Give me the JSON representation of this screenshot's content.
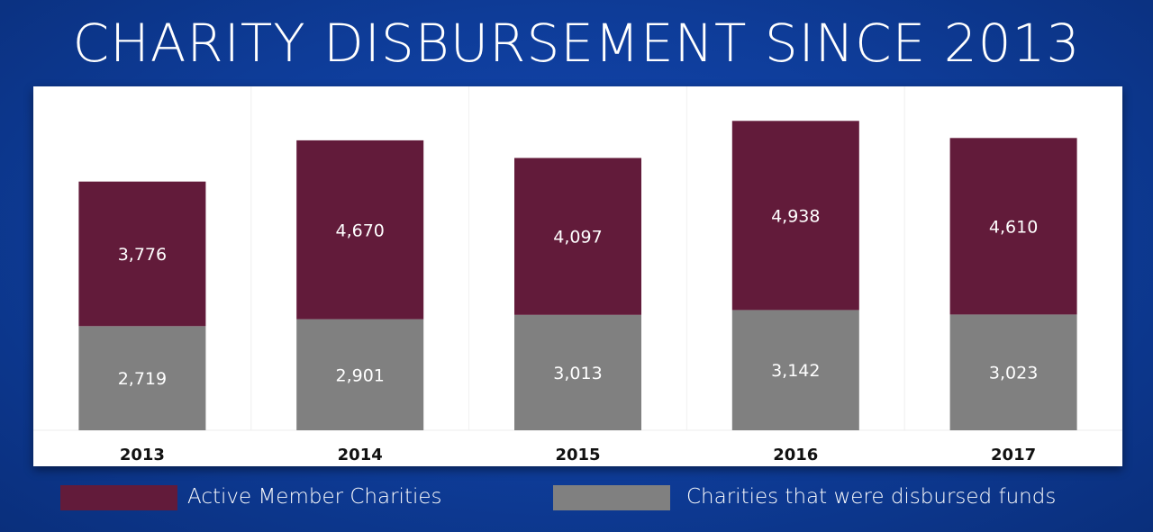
{
  "chart_data": {
    "type": "bar",
    "stacked": true,
    "title": "CHARITY DISBURSEMENT SINCE 2013",
    "categories": [
      "2013",
      "2014",
      "2015",
      "2016",
      "2017"
    ],
    "series": [
      {
        "name": "Charities that were disbursed funds",
        "values": [
          2719,
          2901,
          3013,
          3142,
          3023
        ],
        "labels": [
          "2,719",
          "2,901",
          "3,013",
          "3,142",
          "3,023"
        ],
        "color": "#808080"
      },
      {
        "name": "Active Member Charities",
        "values": [
          3776,
          4670,
          4097,
          4938,
          4610
        ],
        "labels": [
          "3,776",
          "4,670",
          "4,097",
          "4,938",
          "4,610"
        ],
        "color": "#621b3a"
      }
    ],
    "grid": false,
    "legend_position": "bottom",
    "background_color": "#0d3a92",
    "panel_color": "#ffffff"
  }
}
